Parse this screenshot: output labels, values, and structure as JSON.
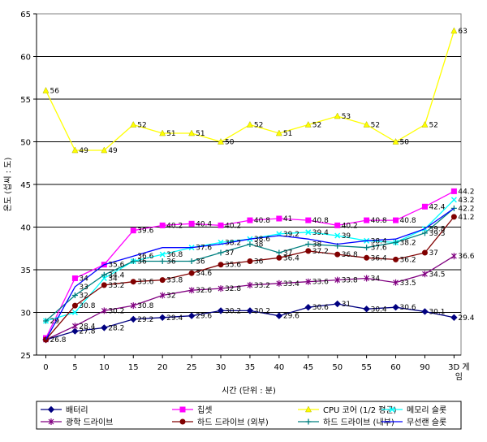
{
  "chart_data": {
    "type": "line",
    "xlabel": "시간 (단위 : 분)",
    "ylabel": "온도 (섭씨 : 도)",
    "ylim": [
      25,
      65
    ],
    "yticks": [
      25,
      30,
      35,
      40,
      45,
      50,
      55,
      60,
      65
    ],
    "grid": "horizontal",
    "legend_position": "bottom",
    "categories": [
      "0",
      "5",
      "10",
      "15",
      "20",
      "25",
      "30",
      "35",
      "40",
      "45",
      "50",
      "55",
      "60",
      "90",
      "3D 게임"
    ],
    "series": [
      {
        "name": "배터리",
        "color": "#000080",
        "marker": "diamond",
        "values": [
          26.8,
          27.8,
          28.2,
          29.2,
          29.4,
          29.6,
          30.2,
          30.2,
          29.6,
          30.6,
          31,
          30.4,
          30.6,
          30.1,
          29.4
        ],
        "labels": [
          "26.8",
          "27.8",
          "28.2",
          "29.2",
          "29.4",
          "29.6",
          "30.2",
          "30.2",
          "29.6",
          "30.6",
          "31",
          "30.4",
          "30.6",
          "30.1",
          "29.4"
        ]
      },
      {
        "name": "칩셋",
        "color": "#ff00ff",
        "marker": "square",
        "values": [
          27,
          34,
          35.6,
          39.6,
          40.2,
          40.4,
          40.2,
          40.8,
          41,
          40.8,
          40.2,
          40.8,
          40.8,
          42.4,
          44.2
        ],
        "labels": [
          "",
          "34",
          "35.6",
          "39.6",
          "40.2",
          "40.4",
          "40.2",
          "40.8",
          "41",
          "40.8",
          "40.2",
          "40.8",
          "40.8",
          "42.4",
          "44.2"
        ]
      },
      {
        "name": "CPU 코어 (1/2 평균)",
        "color": "#ffff00",
        "marker": "triangle",
        "values": [
          56,
          49,
          49,
          52,
          51,
          51,
          50,
          52,
          51,
          52,
          53,
          52,
          50,
          52,
          63
        ],
        "labels": [
          "56",
          "49",
          "49",
          "52",
          "51",
          "51",
          "50",
          "52",
          "51",
          "52",
          "53",
          "52",
          "50",
          "52",
          "63"
        ]
      },
      {
        "name": "메모리 슬롯",
        "color": "#00ffff",
        "marker": "x",
        "values": [
          29,
          30,
          34,
          36,
          36.8,
          37.6,
          38.2,
          38.6,
          39.2,
          39.4,
          39,
          38.4,
          38.2,
          39.8,
          43.2
        ],
        "labels": [
          "29",
          "",
          "34",
          "",
          "36.8",
          "37.6",
          "38.2",
          "38.6",
          "39.2",
          "39.4",
          "39",
          "38.4",
          "38.2",
          "39.8",
          "43.2"
        ]
      },
      {
        "name": "광학 드라이브",
        "color": "#800080",
        "marker": "star",
        "values": [
          26.8,
          28.4,
          30.2,
          30.8,
          32,
          32.6,
          32.8,
          33.2,
          33.4,
          33.6,
          33.8,
          34,
          33.5,
          34.5,
          36.6
        ],
        "labels": [
          "",
          "28.4",
          "30.2",
          "30.8",
          "32",
          "32.6",
          "32.8",
          "33.2",
          "33.4",
          "33.6",
          "33.8",
          "34",
          "33.5",
          "34.5",
          "36.6"
        ]
      },
      {
        "name": "하드 드라이브 (외부)",
        "color": "#800000",
        "marker": "circle",
        "values": [
          26.8,
          30.8,
          33.2,
          33.6,
          33.8,
          34.6,
          35.6,
          36,
          36.4,
          37.2,
          36.8,
          36.4,
          36.2,
          37,
          41.2
        ],
        "labels": [
          "",
          "30.8",
          "33.2",
          "33.6",
          "33.8",
          "34.6",
          "35.6",
          "36",
          "36.4",
          "37.2",
          "36.8",
          "36.4",
          "36.2",
          "37",
          "41.2"
        ]
      },
      {
        "name": "하드 드라이브 (내부)",
        "color": "#008080",
        "marker": "plus",
        "values": [
          29,
          32,
          34.4,
          36,
          36,
          36,
          37,
          38,
          37,
          38,
          37.8,
          37.6,
          38.2,
          39.3,
          42.2
        ],
        "labels": [
          "",
          "32",
          "34.4",
          "36",
          "36",
          "36",
          "37",
          "38",
          "37",
          "38",
          "",
          "37.6",
          "",
          "39.3",
          "42.2"
        ]
      },
      {
        "name": "무선랜 슬롯",
        "color": "#0000ff",
        "marker": "none",
        "values": [
          26.8,
          33,
          35.6,
          36.6,
          37.6,
          37.6,
          38,
          38.6,
          39,
          38.6,
          38,
          38.4,
          38.6,
          39.8,
          42.2
        ],
        "labels": [
          "",
          "33",
          "",
          "36.6",
          "",
          "",
          "",
          "",
          "",
          "",
          "",
          "",
          "",
          "",
          ""
        ]
      }
    ]
  }
}
